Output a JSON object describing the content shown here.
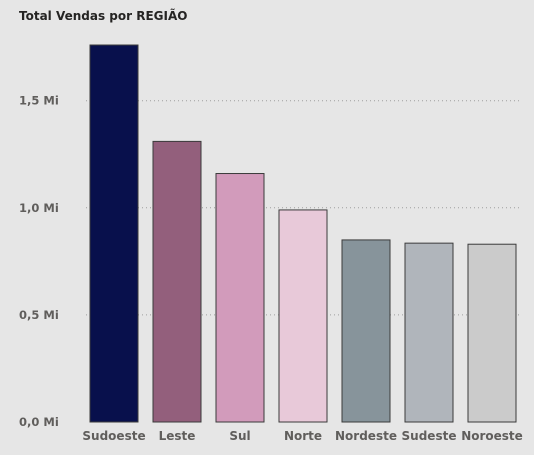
{
  "chart_data": {
    "type": "bar",
    "title": "Total Vendas por REGIÃO",
    "xlabel": "",
    "ylabel": "",
    "categories": [
      "Sudoeste",
      "Leste",
      "Sul",
      "Norte",
      "Nordeste",
      "Sudeste",
      "Noroeste"
    ],
    "values": [
      1.76,
      1.31,
      1.16,
      0.99,
      0.85,
      0.835,
      0.83
    ],
    "unit": "Mi",
    "ylim": [
      0,
      1.76
    ],
    "yticks": [
      0,
      0.5,
      1.0,
      1.5
    ],
    "ytick_labels": [
      "0,0 Mi",
      "0,5 Mi",
      "1,0 Mi",
      "1,5 Mi"
    ],
    "grid": true,
    "colors": [
      "#08104c",
      "#935f7c",
      "#d29bbb",
      "#e8c9d9",
      "#87949b",
      "#b0b5bb",
      "#cbcbcb"
    ]
  }
}
